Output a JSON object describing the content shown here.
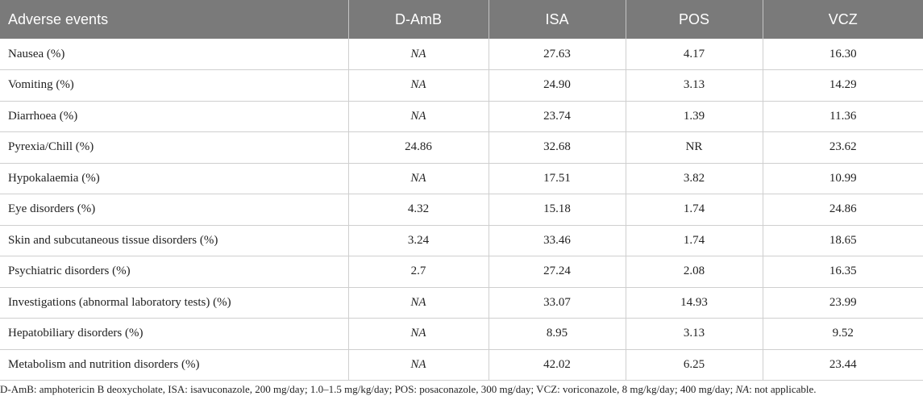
{
  "table": {
    "headers": [
      "Adverse events",
      "D-AmB",
      "ISA",
      "POS",
      "VCZ"
    ],
    "rows": [
      {
        "label": "Nausea (%)",
        "values": [
          "NA",
          "27.63",
          "4.17",
          "16.30"
        ]
      },
      {
        "label": "Vomiting (%)",
        "values": [
          "NA",
          "24.90",
          "3.13",
          "14.29"
        ]
      },
      {
        "label": "Diarrhoea (%)",
        "values": [
          "NA",
          "23.74",
          "1.39",
          "11.36"
        ]
      },
      {
        "label": "Pyrexia/Chill (%)",
        "values": [
          "24.86",
          "32.68",
          "NR",
          "23.62"
        ]
      },
      {
        "label": "Hypokalaemia (%)",
        "values": [
          "NA",
          "17.51",
          "3.82",
          "10.99"
        ]
      },
      {
        "label": "Eye disorders (%)",
        "values": [
          "4.32",
          "15.18",
          "1.74",
          "24.86"
        ]
      },
      {
        "label": "Skin and subcutaneous tissue disorders (%)",
        "values": [
          "3.24",
          "33.46",
          "1.74",
          "18.65"
        ]
      },
      {
        "label": "Psychiatric disorders (%)",
        "values": [
          "2.7",
          "27.24",
          "2.08",
          "16.35"
        ]
      },
      {
        "label": "Investigations (abnormal laboratory tests) (%)",
        "values": [
          "NA",
          "33.07",
          "14.93",
          "23.99"
        ]
      },
      {
        "label": "Hepatobiliary disorders (%)",
        "values": [
          "NA",
          "8.95",
          "3.13",
          "9.52"
        ]
      },
      {
        "label": "Metabolism and nutrition disorders (%)",
        "values": [
          "NA",
          "42.02",
          "6.25",
          "23.44"
        ]
      }
    ]
  },
  "footnote": {
    "main": "D-AmB: amphotericin B deoxycholate, ISA: isavuconazole, 200 mg/day; 1.0–1.5 mg/kg/day; POS: posaconazole, 300 mg/day; VCZ: voriconazole, 8 mg/kg/day; 400 mg/day; ",
    "na_term": "NA",
    "na_def": ": not applicable."
  }
}
